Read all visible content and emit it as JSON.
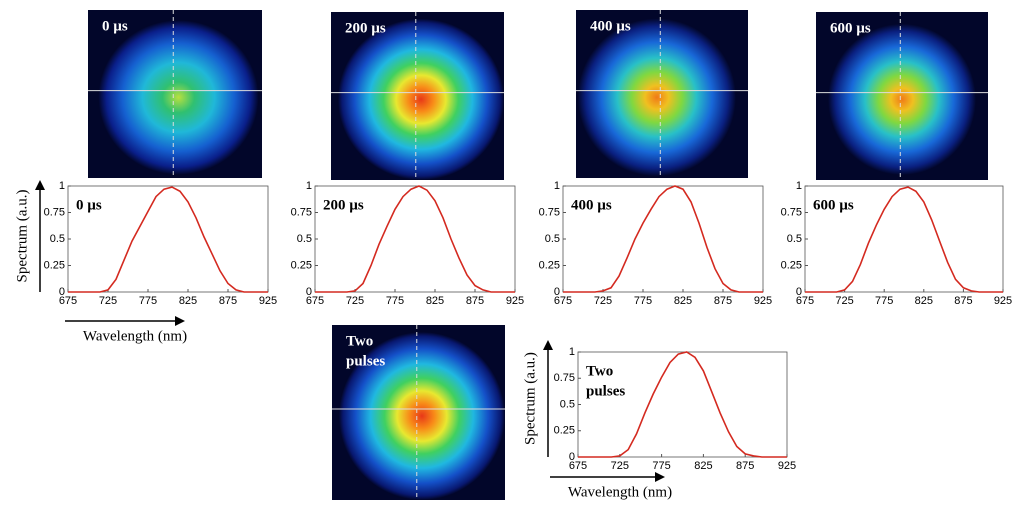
{
  "chart_data": [
    {
      "type": "line",
      "annotation": [
        "0 µs"
      ],
      "ylabel": "Spectrum (a.u.)",
      "xlabel": "Wavelength (nm)",
      "color": "#d42a20",
      "x": [
        675,
        685,
        695,
        705,
        715,
        725,
        735,
        745,
        755,
        765,
        775,
        785,
        795,
        805,
        815,
        825,
        835,
        845,
        855,
        865,
        875,
        885,
        895,
        905,
        915,
        925
      ],
      "values": [
        0,
        0,
        0,
        0,
        0,
        0.02,
        0.12,
        0.3,
        0.48,
        0.62,
        0.76,
        0.9,
        0.97,
        0.99,
        0.95,
        0.85,
        0.7,
        0.52,
        0.36,
        0.2,
        0.08,
        0.02,
        0,
        0,
        0,
        0
      ],
      "xlim": [
        675,
        925
      ],
      "ylim": [
        0,
        1
      ],
      "xticks": [
        675,
        725,
        775,
        825,
        875,
        925
      ],
      "yticks": [
        0,
        0.25,
        0.5,
        0.75,
        1
      ]
    },
    {
      "type": "line",
      "annotation": [
        "200 µs"
      ],
      "color": "#d42a20",
      "x": [
        675,
        685,
        695,
        705,
        715,
        725,
        735,
        745,
        755,
        765,
        775,
        785,
        795,
        805,
        815,
        825,
        835,
        845,
        855,
        865,
        875,
        885,
        895,
        905,
        915,
        925
      ],
      "values": [
        0,
        0,
        0,
        0,
        0,
        0.01,
        0.08,
        0.25,
        0.45,
        0.62,
        0.78,
        0.9,
        0.97,
        1,
        0.96,
        0.86,
        0.7,
        0.5,
        0.32,
        0.16,
        0.06,
        0.02,
        0,
        0,
        0,
        0
      ],
      "xlim": [
        675,
        925
      ],
      "ylim": [
        0,
        1
      ],
      "xticks": [
        675,
        725,
        775,
        825,
        875,
        925
      ],
      "yticks": [
        0,
        0.25,
        0.5,
        0.75,
        1
      ]
    },
    {
      "type": "line",
      "annotation": [
        "400 µs"
      ],
      "color": "#d42a20",
      "x": [
        675,
        685,
        695,
        705,
        715,
        725,
        735,
        745,
        755,
        765,
        775,
        785,
        795,
        805,
        815,
        825,
        835,
        845,
        855,
        865,
        875,
        885,
        895,
        905,
        915,
        925
      ],
      "values": [
        0,
        0,
        0,
        0,
        0,
        0.01,
        0.04,
        0.15,
        0.32,
        0.5,
        0.65,
        0.78,
        0.9,
        0.97,
        1,
        0.97,
        0.85,
        0.65,
        0.42,
        0.22,
        0.08,
        0.02,
        0,
        0,
        0,
        0
      ],
      "xlim": [
        675,
        925
      ],
      "ylim": [
        0,
        1
      ],
      "xticks": [
        675,
        725,
        775,
        825,
        875,
        925
      ],
      "yticks": [
        0,
        0.25,
        0.5,
        0.75,
        1
      ]
    },
    {
      "type": "line",
      "annotation": [
        "600 µs"
      ],
      "color": "#d42a20",
      "x": [
        675,
        685,
        695,
        705,
        715,
        725,
        735,
        745,
        755,
        765,
        775,
        785,
        795,
        805,
        815,
        825,
        835,
        845,
        855,
        865,
        875,
        885,
        895,
        905,
        915,
        925
      ],
      "values": [
        0,
        0,
        0,
        0,
        0,
        0.02,
        0.1,
        0.26,
        0.46,
        0.63,
        0.78,
        0.9,
        0.97,
        0.99,
        0.95,
        0.85,
        0.68,
        0.48,
        0.28,
        0.12,
        0.04,
        0.01,
        0,
        0,
        0,
        0
      ],
      "xlim": [
        675,
        925
      ],
      "ylim": [
        0,
        1
      ],
      "xticks": [
        675,
        725,
        775,
        825,
        875,
        925
      ],
      "yticks": [
        0,
        0.25,
        0.5,
        0.75,
        1
      ]
    },
    {
      "type": "line",
      "annotation": [
        "Two",
        "pulses"
      ],
      "ylabel": "Spectrum (a.u.)",
      "xlabel": "Wavelength (nm)",
      "color": "#d42a20",
      "x": [
        675,
        685,
        695,
        705,
        715,
        725,
        735,
        745,
        755,
        765,
        775,
        785,
        795,
        805,
        815,
        825,
        835,
        845,
        855,
        865,
        875,
        885,
        895,
        905,
        915,
        925
      ],
      "values": [
        0,
        0,
        0,
        0,
        0,
        0.01,
        0.07,
        0.22,
        0.42,
        0.6,
        0.76,
        0.9,
        0.98,
        1,
        0.95,
        0.82,
        0.62,
        0.42,
        0.24,
        0.1,
        0.03,
        0.01,
        0,
        0,
        0,
        0
      ],
      "xlim": [
        675,
        925
      ],
      "ylim": [
        0,
        1
      ],
      "xticks": [
        675,
        725,
        775,
        825,
        875,
        925
      ],
      "yticks": [
        0,
        0.25,
        0.5,
        0.75,
        1
      ]
    }
  ],
  "images": [
    {
      "label": [
        "0 µs"
      ]
    },
    {
      "label": [
        "200 µs"
      ]
    },
    {
      "label": [
        "400 µs"
      ]
    },
    {
      "label": [
        "600 µs"
      ]
    },
    {
      "label": [
        "Two",
        "pulses"
      ]
    }
  ]
}
